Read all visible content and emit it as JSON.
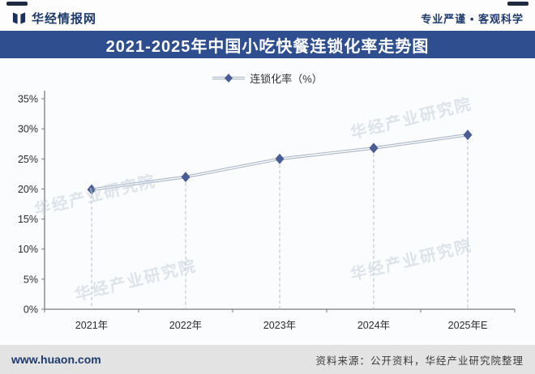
{
  "header": {
    "brand": "华经情报网",
    "slogan": "专业严谨 • 客观科学"
  },
  "watermark": {
    "text": "华经产业研究院"
  },
  "chart_data": {
    "type": "line",
    "title": "2021-2025年中国小吃快餐连锁化率走势图",
    "categories": [
      "2021年",
      "2022年",
      "2023年",
      "2024年",
      "2025年E"
    ],
    "series": [
      {
        "name": "连锁化率（%）",
        "values": [
          19.9,
          22.0,
          25.0,
          26.8,
          29.0
        ]
      }
    ],
    "ylim": [
      0,
      35
    ],
    "ytick_step": 5,
    "ytick_suffix": "%",
    "grid": false,
    "legend_position": "top",
    "marker": "diamond"
  },
  "colors": {
    "title_bar": "#2f4e8f",
    "brand_navy": "#1e3a6b",
    "line": "#a8b6ca",
    "line_inner": "#ffffff",
    "marker": "#4a5c94",
    "axis": "#7a7a7a",
    "drop_line": "#b9bec6"
  },
  "footer": {
    "website": "www.huaon.com",
    "source": "资料来源：公开资料，华经产业研究院整理"
  }
}
